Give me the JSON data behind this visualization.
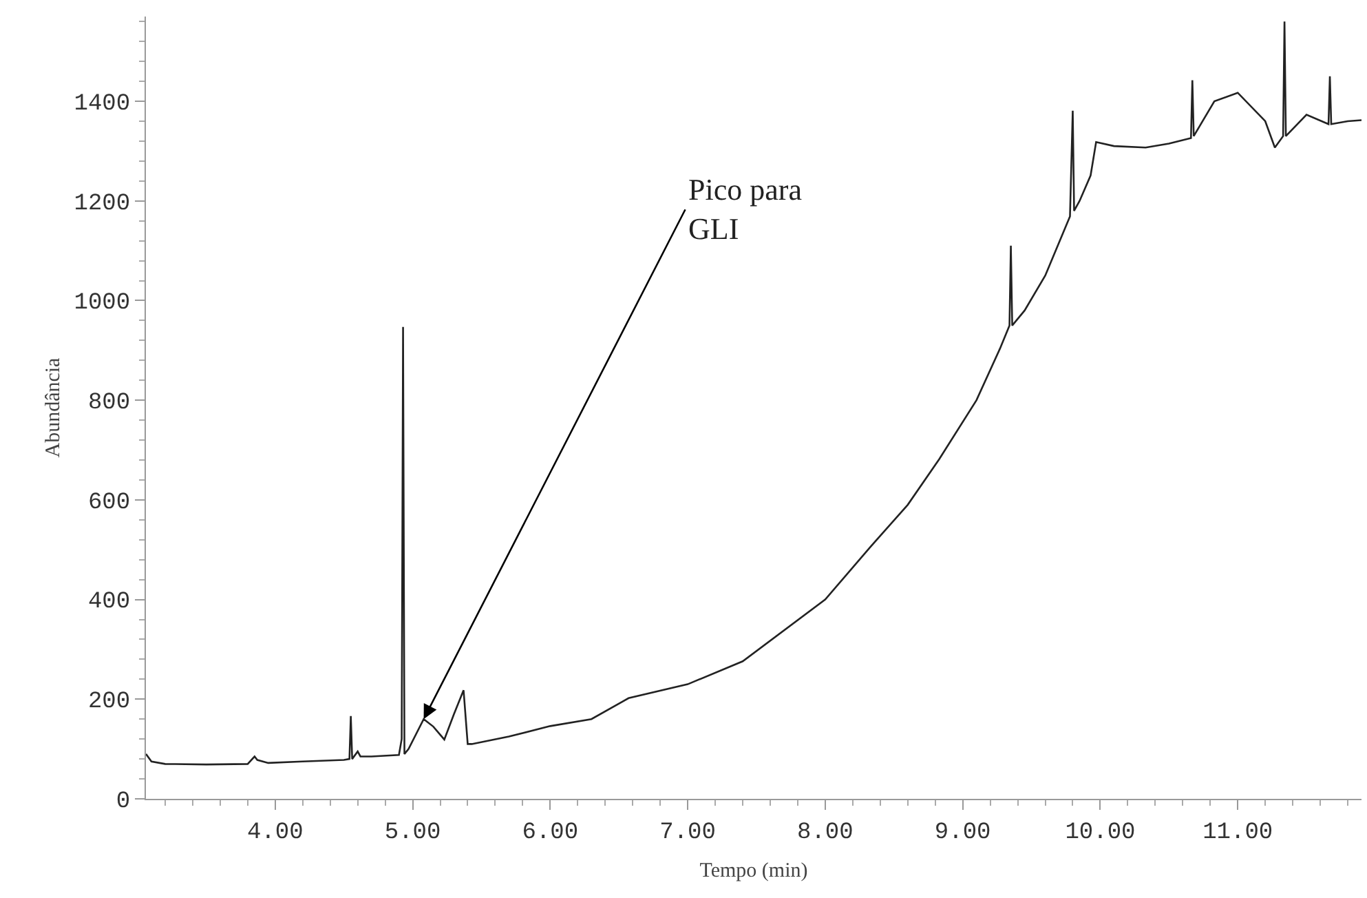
{
  "chart_data": {
    "type": "line",
    "xlabel": "Tempo (min)",
    "ylabel": "Abundância",
    "x": [
      3.06,
      3.1,
      3.2,
      3.5,
      3.8,
      3.85,
      3.87,
      3.95,
      4.2,
      4.5,
      4.54,
      4.55,
      4.56,
      4.6,
      4.62,
      4.7,
      4.9,
      4.92,
      4.93,
      4.94,
      4.97,
      5.08,
      5.15,
      5.23,
      5.3,
      5.37,
      5.4,
      5.43,
      5.7,
      6.0,
      6.3,
      6.57,
      7.0,
      7.4,
      8.0,
      8.33,
      8.6,
      8.83,
      9.1,
      9.27,
      9.34,
      9.35,
      9.36,
      9.45,
      9.6,
      9.78,
      9.8,
      9.81,
      9.85,
      9.93,
      9.97,
      10.1,
      10.33,
      10.5,
      10.66,
      10.67,
      10.68,
      10.83,
      11.0,
      11.2,
      11.27,
      11.33,
      11.34,
      11.35,
      11.5,
      11.66,
      11.67,
      11.68,
      11.8,
      11.9
    ],
    "series": [
      {
        "color": "#222222",
        "values": [
          90,
          75,
          70,
          69,
          70,
          85,
          78,
          72,
          75,
          78,
          80,
          166,
          80,
          95,
          85,
          85,
          88,
          120,
          947,
          90,
          100,
          160,
          145,
          119,
          170,
          218,
          110,
          110,
          125,
          146,
          160,
          202,
          230,
          276,
          400,
          506,
          590,
          682,
          800,
          903,
          950,
          1110,
          950,
          980,
          1050,
          1169,
          1381,
          1180,
          1200,
          1251,
          1318,
          1310,
          1307,
          1315,
          1326,
          1442,
          1330,
          1400,
          1417,
          1360,
          1307,
          1330,
          1560,
          1330,
          1373,
          1354,
          1450,
          1354,
          1360,
          1362
        ]
      }
    ],
    "xlim": [
      3.06,
      11.9
    ],
    "ylim": [
      0,
      1570
    ],
    "xticks": [
      {
        "value": 4,
        "label": "4.00"
      },
      {
        "value": 5,
        "label": "5.00"
      },
      {
        "value": 6,
        "label": "6.00"
      },
      {
        "value": 7,
        "label": "7.00"
      },
      {
        "value": 8,
        "label": "8.00"
      },
      {
        "value": 9,
        "label": "9.00"
      },
      {
        "value": 10,
        "label": "10.00"
      },
      {
        "value": 11,
        "label": "11.00"
      }
    ],
    "yticks": [
      0,
      200,
      400,
      600,
      800,
      1000,
      1200,
      1400
    ],
    "annotations": [
      {
        "text": "Pico para\nGLI",
        "x": 5.08,
        "y": 160
      }
    ],
    "marker": "none",
    "line_style": "solid"
  }
}
